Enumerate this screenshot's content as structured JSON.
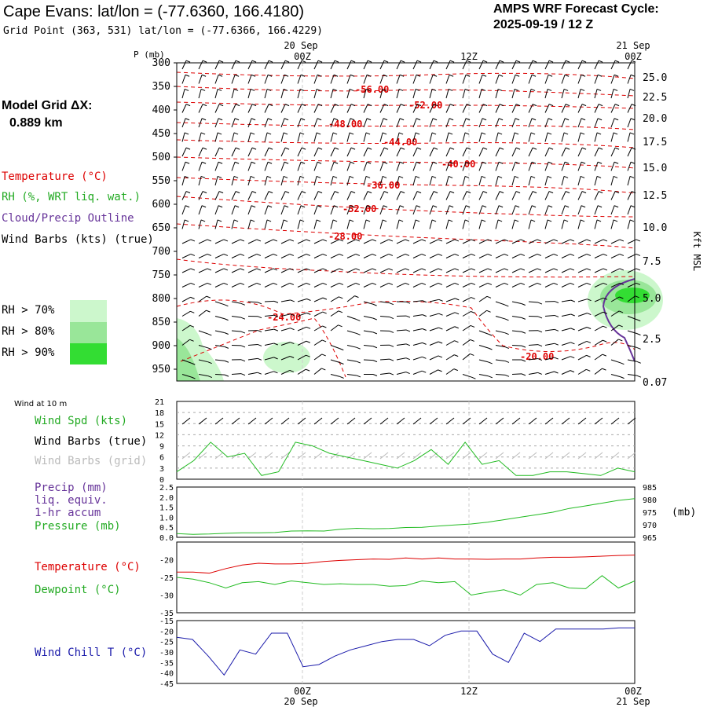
{
  "header": {
    "title": "Cape Evans:  lat/lon = (-77.6360, 166.4180)",
    "grid_point": "Grid Point (363, 531) lat/lon = (-77.6366, 166.4229)",
    "product": "AMPS WRF Forecast Cycle:",
    "cycle": "2025-09-19 / 12  Z"
  },
  "model_grid": {
    "label": "Model Grid ΔX:",
    "value": "0.889 km"
  },
  "legend": {
    "temperature": "Temperature (°C)",
    "rh": "RH (%, WRT liq. wat.)",
    "cloud": "Cloud/Precip Outline",
    "wind": "Wind Barbs (kts) (true)",
    "rh70": "RH > 70%",
    "rh80": "RH > 80%",
    "rh90": "RH > 90%"
  },
  "colors": {
    "temp": "#dd0000",
    "rh70": "#ccf7cc",
    "rh80": "#99e699",
    "rh90": "#33dd33",
    "cloud": "#663399",
    "green": "#22bb22",
    "windchill": "#0000aa"
  },
  "time_axis": {
    "top_labels": [
      "20 Sep",
      "21 Sep"
    ],
    "ticks": [
      "00Z",
      "12Z",
      "00Z"
    ],
    "bottom_ticks": [
      "00Z",
      "12Z",
      "00Z"
    ],
    "bottom_dates": [
      "20 Sep",
      "21 Sep"
    ]
  },
  "chart_data": [
    {
      "type": "contour",
      "panel": "vertical cross-section",
      "ylabel": "P (mb)",
      "pressure_ticks": [
        300,
        350,
        400,
        450,
        500,
        550,
        600,
        650,
        700,
        750,
        800,
        850,
        900,
        950
      ],
      "height_axis_label": "Kft MSL",
      "height_ticks": [
        "25.0",
        "22.5",
        "20.0",
        "17.5",
        "15.0",
        "12.5",
        "10.0",
        "7.5",
        "5.0",
        "2.5",
        "0.07"
      ],
      "temperature_labels": [
        "-56.00",
        "-52.00",
        "-48.00",
        "-44.00",
        "-40.00",
        "-36.00",
        "-32.00",
        "-28.00",
        "-24.00",
        "-20.00"
      ]
    },
    {
      "type": "line",
      "title": "Wind at 10 m",
      "series": [
        {
          "name": "Wind Spd (kts)",
          "values": [
            2,
            5,
            10,
            6,
            7,
            1,
            2,
            10,
            9,
            7,
            6,
            5,
            4,
            3,
            5,
            8,
            4,
            10,
            4,
            5,
            1,
            1,
            2,
            2,
            1.5,
            1,
            3,
            2
          ]
        },
        {
          "name": "Wind Barbs (true)"
        },
        {
          "name": "Wind Barbs (grid)"
        }
      ],
      "yticks": [
        0,
        3,
        6,
        9,
        12,
        15,
        18,
        21
      ],
      "ylim": [
        0,
        21
      ]
    },
    {
      "type": "line",
      "series": [
        {
          "name": "Precip (mm)",
          "subtitle": [
            "liq. equiv.",
            "1-hr accum"
          ],
          "values": []
        },
        {
          "name": "Pressure (mb)",
          "values": [
            966.5,
            966.2,
            966.3,
            966.6,
            966.8,
            966.8,
            966.9,
            967.5,
            967.6,
            967.5,
            968.2,
            968.6,
            968.4,
            968.5,
            968.9,
            969.0,
            969.5,
            969.9,
            970.3,
            971.0,
            972.0,
            973.0,
            974.0,
            975.0,
            976.5,
            977.5,
            978.6,
            979.7,
            980.4
          ]
        }
      ],
      "left_ticks": [
        "0.0",
        "0.5",
        "1.0",
        "1.5",
        "2.0",
        "2.5"
      ],
      "right_ticks": [
        "965",
        "970",
        "975",
        "980",
        "985"
      ],
      "right_unit": "(mb)"
    },
    {
      "type": "line",
      "series": [
        {
          "name": "Temperature (°C)",
          "values": [
            -23.5,
            -23.5,
            -23.8,
            -22.5,
            -21.5,
            -21.0,
            -21.2,
            -21.2,
            -21.0,
            -20.5,
            -20.2,
            -20.0,
            -19.8,
            -19.9,
            -19.5,
            -19.8,
            -19.5,
            -19.8,
            -19.8,
            -19.9,
            -19.8,
            -19.8,
            -19.5,
            -19.3,
            -19.3,
            -19.2,
            -19.0,
            -18.8,
            -18.7
          ]
        },
        {
          "name": "Dewpoint (°C)",
          "values": [
            -25.0,
            -25.5,
            -26.5,
            -28.0,
            -26.5,
            -26.2,
            -27.0,
            -26.0,
            -26.5,
            -27.0,
            -26.8,
            -27.0,
            -27.0,
            -27.5,
            -27.3,
            -26.0,
            -26.5,
            -26.2,
            -30.0,
            -29.2,
            -28.5,
            -30.0,
            -27.0,
            -26.5,
            -28.0,
            -28.2,
            -24.5,
            -28.0,
            -26.0
          ]
        }
      ],
      "yticks": [
        -35,
        -30,
        -25,
        -20
      ],
      "ylim": [
        -35,
        -15
      ]
    },
    {
      "type": "line",
      "series": [
        {
          "name": "Wind Chill T (°C)",
          "values": [
            -23,
            -24,
            -32,
            -41,
            -29,
            -31,
            -21,
            -21,
            -37,
            -36,
            -32,
            -29,
            -27,
            -25,
            -24,
            -24,
            -27,
            -22,
            -20,
            -20,
            -31,
            -35,
            -21,
            -25,
            -19,
            -19,
            -19,
            -19,
            -18.5,
            -18.5
          ]
        }
      ],
      "yticks": [
        -45,
        -40,
        -35,
        -30,
        -25,
        -20,
        -15
      ],
      "ylim": [
        -45,
        -15
      ]
    }
  ]
}
